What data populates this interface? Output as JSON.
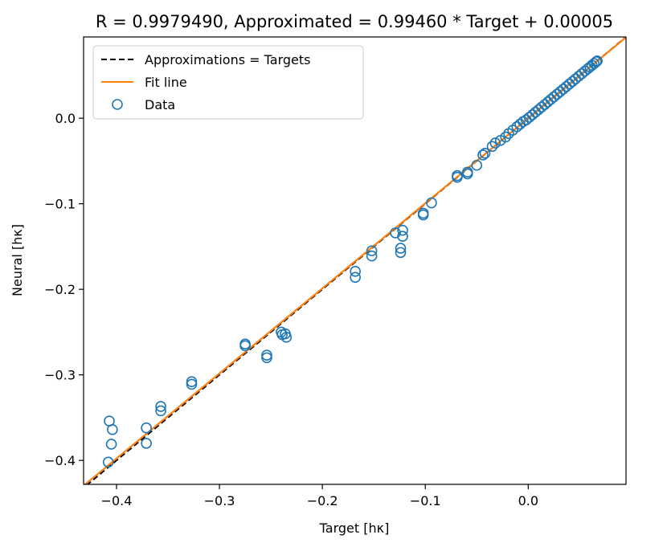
{
  "chart_data": {
    "type": "scatter",
    "title": "R = 0.9979490, Approximated = 0.99460 * Target + 0.00005",
    "xlabel": "Target [hκ]",
    "ylabel": "Neural [hκ]",
    "xlim": [
      -0.432,
      0.095
    ],
    "ylim": [
      -0.428,
      0.095
    ],
    "xticks": [
      -0.4,
      -0.3,
      -0.2,
      -0.1,
      0.0
    ],
    "xtick_labels": [
      "−0.4",
      "−0.3",
      "−0.2",
      "−0.1",
      "0.0"
    ],
    "yticks": [
      0.0,
      -0.1,
      -0.2,
      -0.3,
      -0.4
    ],
    "ytick_labels": [
      "0.0",
      "−0.1",
      "−0.2",
      "−0.3",
      "−0.4"
    ],
    "grid": false,
    "legend_position": "top-left",
    "legend": [
      "Approximations = Targets",
      "Fit line",
      "Data"
    ],
    "fit": {
      "slope": 0.9946,
      "intercept": 5e-05
    },
    "colors": {
      "data": "#1f77b4",
      "fit": "#ff7f0e",
      "identity": "#000000"
    },
    "series": [
      {
        "name": "Data",
        "points": [
          [
            -0.407,
            -0.354
          ],
          [
            -0.404,
            -0.364
          ],
          [
            -0.405,
            -0.381
          ],
          [
            -0.408,
            -0.402
          ],
          [
            -0.371,
            -0.362
          ],
          [
            -0.371,
            -0.38
          ],
          [
            -0.357,
            -0.337
          ],
          [
            -0.357,
            -0.342
          ],
          [
            -0.327,
            -0.308
          ],
          [
            -0.327,
            -0.311
          ],
          [
            -0.275,
            -0.264
          ],
          [
            -0.275,
            -0.266
          ],
          [
            -0.254,
            -0.277
          ],
          [
            -0.254,
            -0.28
          ],
          [
            -0.24,
            -0.25
          ],
          [
            -0.236,
            -0.252
          ],
          [
            -0.239,
            -0.253
          ],
          [
            -0.235,
            -0.256
          ],
          [
            -0.168,
            -0.179
          ],
          [
            -0.168,
            -0.186
          ],
          [
            -0.152,
            -0.155
          ],
          [
            -0.152,
            -0.161
          ],
          [
            -0.129,
            -0.134
          ],
          [
            -0.122,
            -0.131
          ],
          [
            -0.122,
            -0.138
          ],
          [
            -0.124,
            -0.152
          ],
          [
            -0.124,
            -0.157
          ],
          [
            -0.102,
            -0.111
          ],
          [
            -0.102,
            -0.113
          ],
          [
            -0.094,
            -0.099
          ],
          [
            -0.069,
            -0.067
          ],
          [
            -0.069,
            -0.069
          ],
          [
            -0.059,
            -0.063
          ],
          [
            -0.059,
            -0.065
          ],
          [
            -0.05,
            -0.055
          ],
          [
            -0.044,
            -0.043
          ],
          [
            -0.042,
            -0.041
          ],
          [
            -0.035,
            -0.033
          ],
          [
            -0.032,
            -0.029
          ],
          [
            -0.027,
            -0.026
          ],
          [
            -0.022,
            -0.022
          ],
          [
            -0.019,
            -0.018
          ],
          [
            -0.015,
            -0.014
          ],
          [
            -0.011,
            -0.01
          ],
          [
            -0.008,
            -0.007
          ],
          [
            -0.005,
            -0.004
          ],
          [
            -0.002,
            -0.002
          ],
          [
            0.001,
            0.001
          ],
          [
            0.004,
            0.004
          ],
          [
            0.007,
            0.007
          ],
          [
            0.01,
            0.01
          ],
          [
            0.013,
            0.013
          ],
          [
            0.016,
            0.016
          ],
          [
            0.019,
            0.019
          ],
          [
            0.022,
            0.022
          ],
          [
            0.025,
            0.025
          ],
          [
            0.028,
            0.028
          ],
          [
            0.031,
            0.031
          ],
          [
            0.034,
            0.034
          ],
          [
            0.037,
            0.037
          ],
          [
            0.04,
            0.04
          ],
          [
            0.043,
            0.043
          ],
          [
            0.046,
            0.046
          ],
          [
            0.049,
            0.049
          ],
          [
            0.052,
            0.052
          ],
          [
            0.055,
            0.055
          ],
          [
            0.058,
            0.058
          ],
          [
            0.06,
            0.06
          ],
          [
            0.062,
            0.062
          ],
          [
            0.064,
            0.064
          ],
          [
            0.066,
            0.066
          ],
          [
            0.067,
            0.067
          ]
        ]
      }
    ]
  }
}
